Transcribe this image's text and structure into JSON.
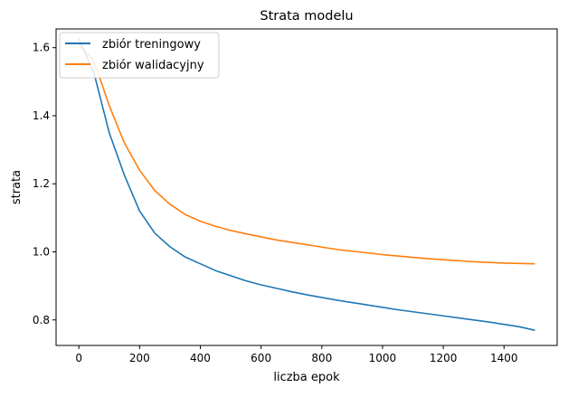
{
  "chart_data": {
    "type": "line",
    "title": "Strata modelu",
    "xlabel": "liczba epok",
    "ylabel": "strata",
    "xlim": [
      -75,
      1575
    ],
    "ylim": [
      0.725,
      1.655
    ],
    "xticks": [
      0,
      200,
      400,
      600,
      800,
      1000,
      1200,
      1400
    ],
    "yticks": [
      0.8,
      1.0,
      1.2,
      1.4,
      1.6
    ],
    "grid": false,
    "legend_position": "upper-left",
    "x": [
      0,
      50,
      100,
      150,
      200,
      250,
      300,
      350,
      400,
      450,
      500,
      550,
      600,
      650,
      700,
      750,
      800,
      850,
      900,
      950,
      1000,
      1050,
      1100,
      1150,
      1200,
      1250,
      1300,
      1350,
      1400,
      1450,
      1500
    ],
    "series": [
      {
        "name": "zbiór treningowy",
        "color": "#1f77b4",
        "values": [
          1.625,
          1.525,
          1.35,
          1.225,
          1.12,
          1.055,
          1.015,
          0.985,
          0.965,
          0.945,
          0.93,
          0.915,
          0.903,
          0.893,
          0.883,
          0.874,
          0.866,
          0.858,
          0.851,
          0.844,
          0.837,
          0.83,
          0.824,
          0.818,
          0.812,
          0.806,
          0.8,
          0.794,
          0.787,
          0.78,
          0.77
        ]
      },
      {
        "name": "zbiór walidacyjny",
        "color": "#ff7f0e",
        "values": [
          1.61,
          1.56,
          1.43,
          1.32,
          1.24,
          1.18,
          1.14,
          1.11,
          1.09,
          1.075,
          1.063,
          1.053,
          1.044,
          1.035,
          1.028,
          1.021,
          1.014,
          1.007,
          1.002,
          0.997,
          0.992,
          0.988,
          0.984,
          0.98,
          0.977,
          0.974,
          0.971,
          0.969,
          0.967,
          0.966,
          0.965
        ]
      }
    ]
  }
}
